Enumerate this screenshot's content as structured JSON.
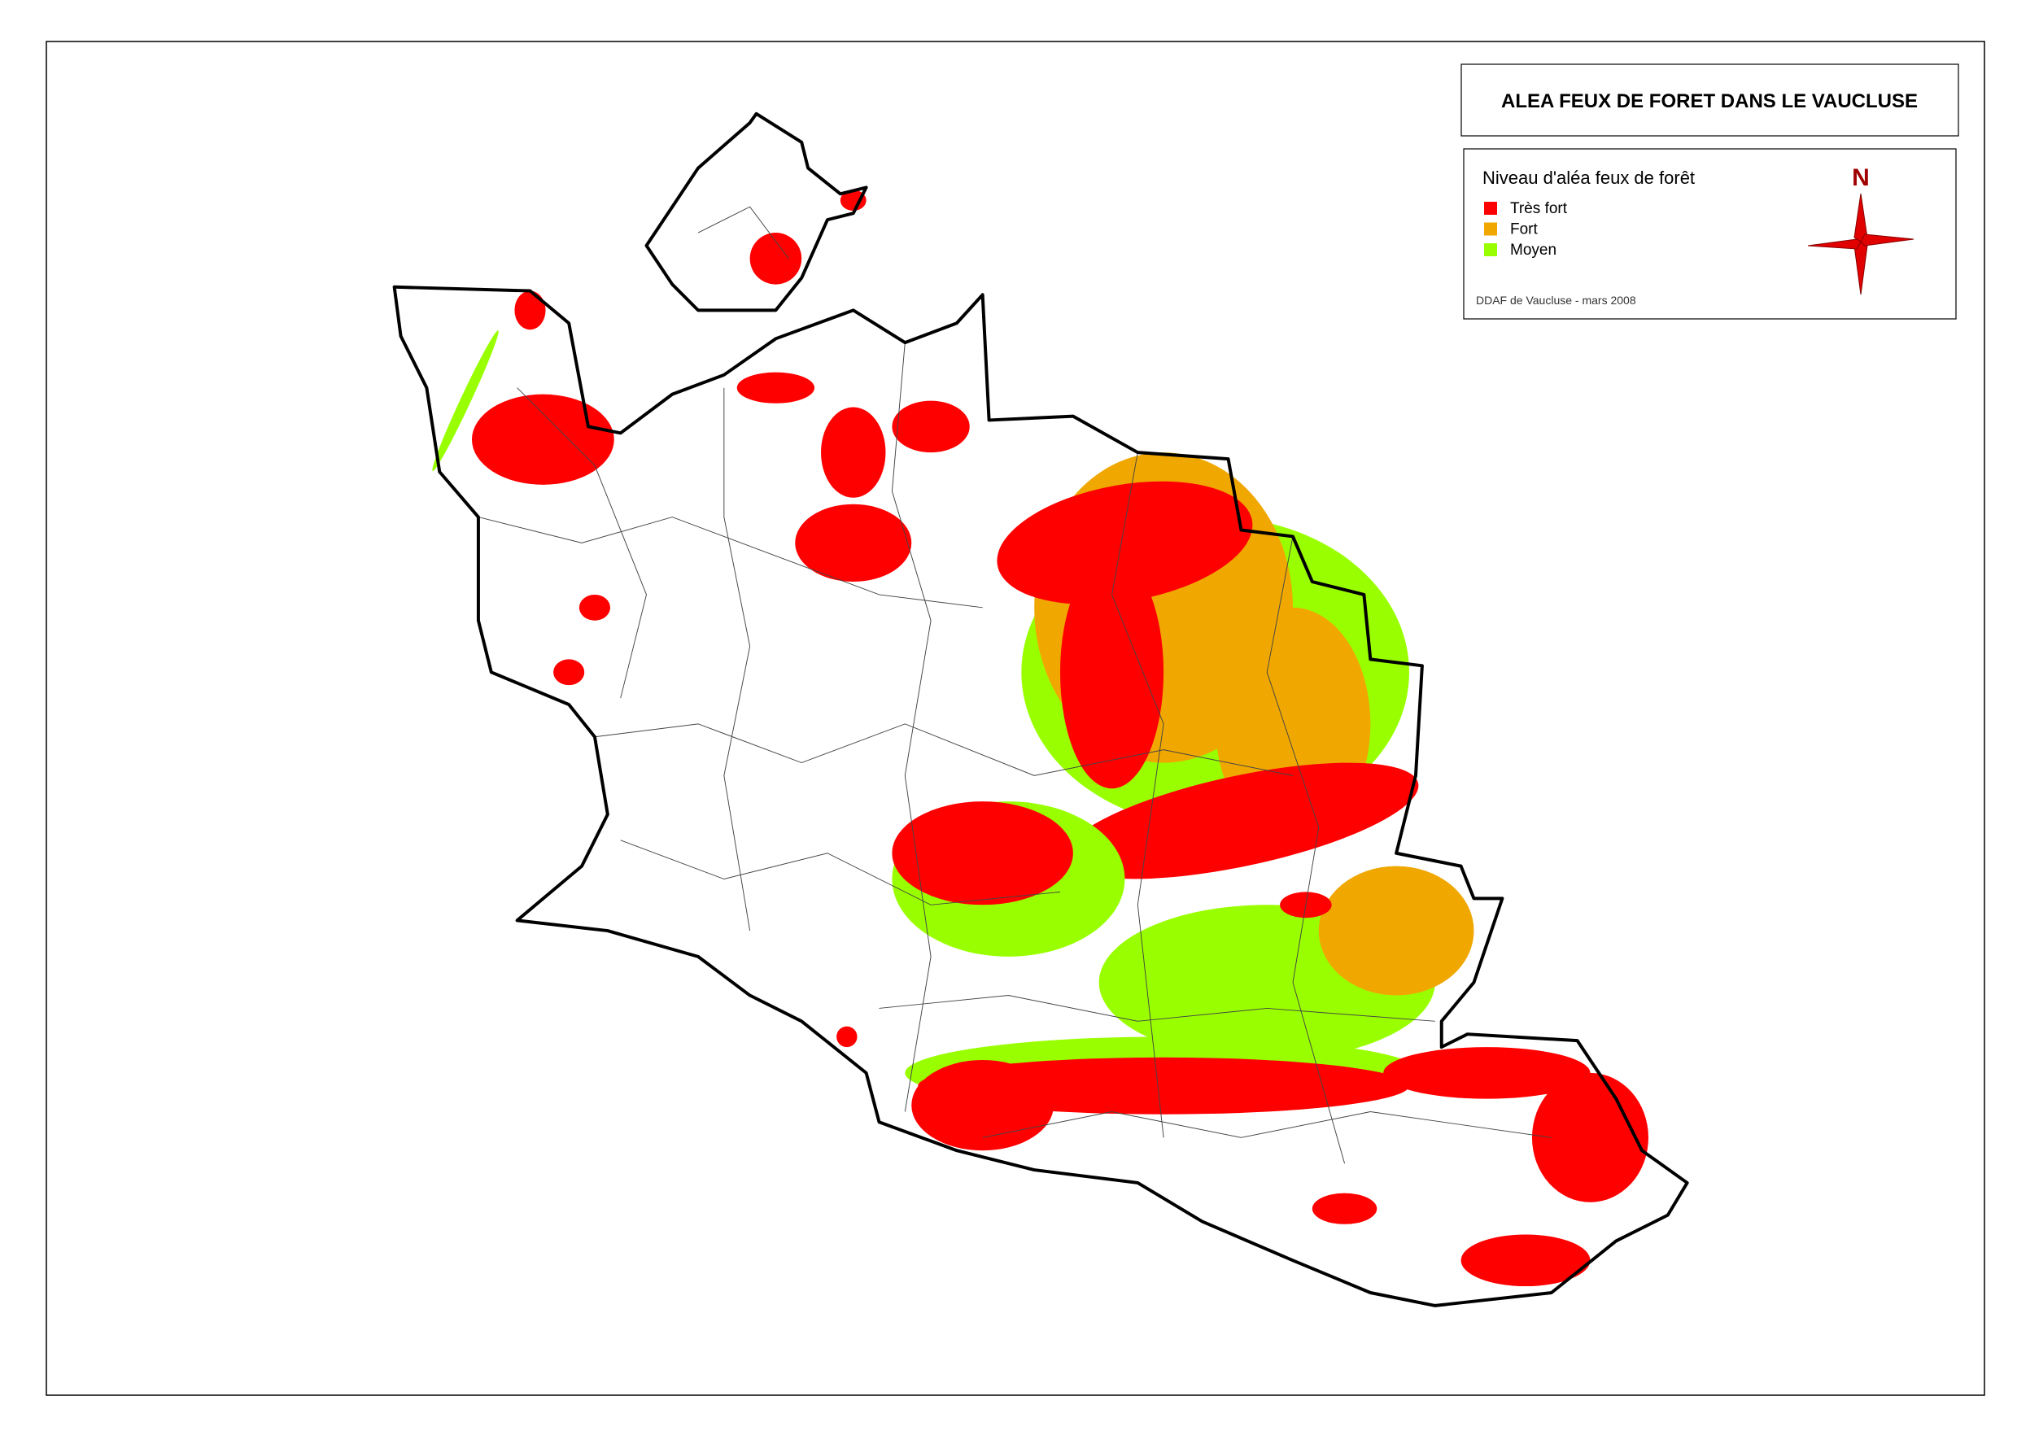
{
  "title": "ALEA FEUX DE FORET DANS LE VAUCLUSE",
  "legend": {
    "title": "Niveau d'aléa feux de forêt",
    "items": [
      {
        "label": "Très fort",
        "color": "#ff0000"
      },
      {
        "label": "Fort",
        "color": "#f0a800"
      },
      {
        "label": "Moyen",
        "color": "#99ff00"
      }
    ]
  },
  "source": "DDAF de Vaucluse - mars 2008",
  "north": "N"
}
